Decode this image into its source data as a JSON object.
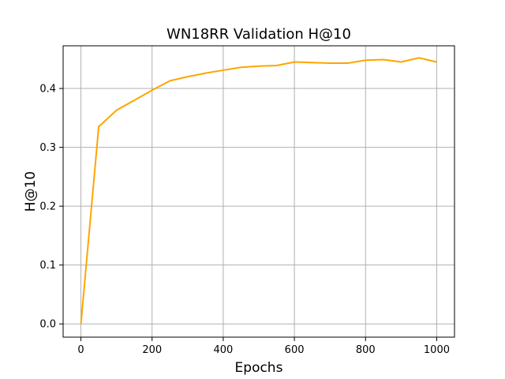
{
  "chart_data": {
    "type": "line",
    "title": "WN18RR Validation H@10",
    "xlabel": "Epochs",
    "ylabel": "H@10",
    "xlim": [
      -50,
      1050
    ],
    "ylim": [
      -0.0225,
      0.4725
    ],
    "xticks": [
      0,
      200,
      400,
      600,
      800,
      1000
    ],
    "yticks": [
      0.0,
      0.1,
      0.2,
      0.3,
      0.4
    ],
    "xtick_labels": [
      "0",
      "200",
      "400",
      "600",
      "800",
      "1000"
    ],
    "ytick_labels": [
      "0.0",
      "0.1",
      "0.2",
      "0.3",
      "0.4"
    ],
    "grid": true,
    "series": [
      {
        "color": "#ffa500",
        "x": [
          0,
          50,
          100,
          150,
          200,
          250,
          300,
          350,
          400,
          450,
          500,
          550,
          600,
          650,
          700,
          750,
          800,
          850,
          900,
          950,
          1000
        ],
        "y": [
          0.0,
          0.335,
          0.363,
          0.38,
          0.397,
          0.413,
          0.42,
          0.426,
          0.431,
          0.436,
          0.438,
          0.439,
          0.445,
          0.444,
          0.443,
          0.443,
          0.448,
          0.449,
          0.445,
          0.452,
          0.445
        ]
      }
    ]
  }
}
